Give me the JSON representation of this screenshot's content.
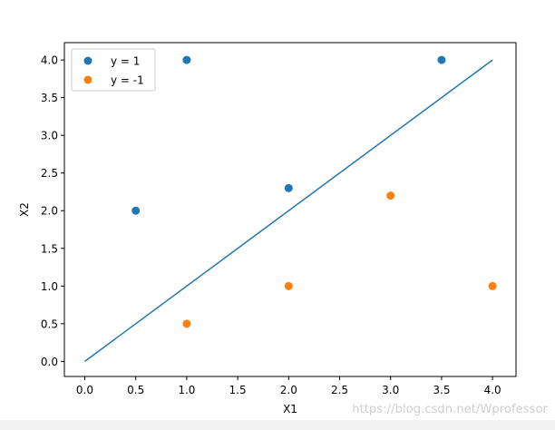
{
  "chart_data": {
    "type": "scatter",
    "xlabel": "X1",
    "ylabel": "X2",
    "xlim": [
      -0.2,
      4.23
    ],
    "ylim": [
      -0.2,
      4.23
    ],
    "xticks": [
      "0.0",
      "0.5",
      "1.0",
      "1.5",
      "2.0",
      "2.5",
      "3.0",
      "3.5",
      "4.0"
    ],
    "yticks": [
      "0.0",
      "0.5",
      "1.0",
      "1.5",
      "2.0",
      "2.5",
      "3.0",
      "3.5",
      "4.0"
    ],
    "grid": false,
    "legend_position": "top-left",
    "series": [
      {
        "name": "y = 1",
        "color": "#1f77b4",
        "kind": "scatter",
        "points": [
          [
            0.5,
            2.0
          ],
          [
            1.0,
            4.0
          ],
          [
            2.0,
            2.3
          ],
          [
            3.5,
            4.0
          ]
        ]
      },
      {
        "name": "y = -1",
        "color": "#ff7f0e",
        "kind": "scatter",
        "points": [
          [
            1.0,
            0.5
          ],
          [
            2.0,
            1.0
          ],
          [
            3.0,
            2.2
          ],
          [
            4.0,
            1.0
          ]
        ]
      }
    ],
    "lines": [
      {
        "color": "#1f77b4",
        "points": [
          [
            0.0,
            0.0
          ],
          [
            4.0,
            4.0
          ]
        ]
      }
    ]
  },
  "watermark": "https://blog.csdn.net/Wprofessor"
}
